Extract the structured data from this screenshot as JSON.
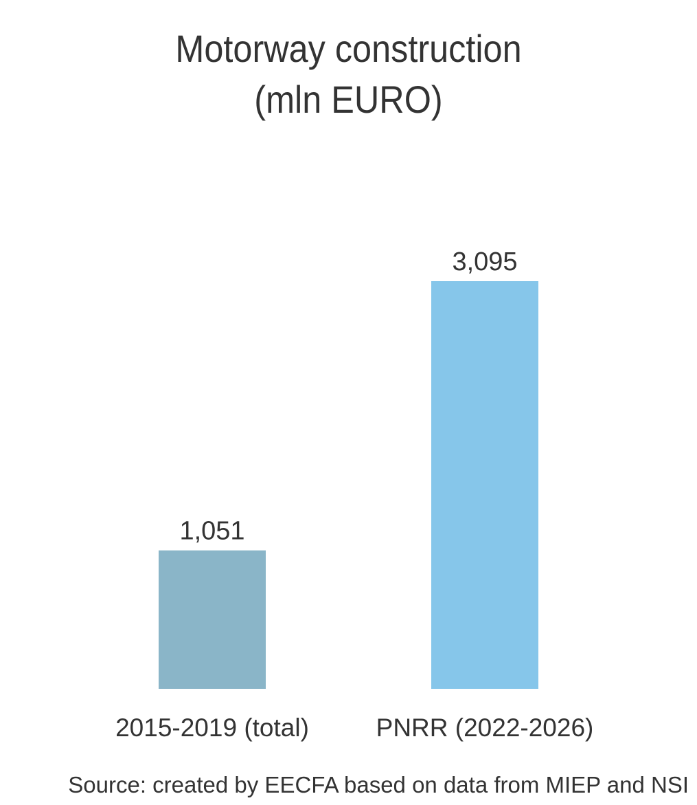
{
  "chart_data": {
    "type": "bar",
    "title_lines": [
      "Motorway construction",
      "(mln EURO)"
    ],
    "categories": [
      "2015-2019 (total)",
      "PNRR (2022-2026)"
    ],
    "values": [
      1051,
      3095
    ],
    "value_labels": [
      "1,051",
      "3,095"
    ],
    "colors": [
      "#8AB5C8",
      "#86C6EA"
    ],
    "xlabel": "",
    "ylabel": "",
    "ylim": [
      0,
      3095
    ],
    "grid": false,
    "legend": "none",
    "source": "Source: created by EECFA based on data from MIEP and NSI"
  }
}
